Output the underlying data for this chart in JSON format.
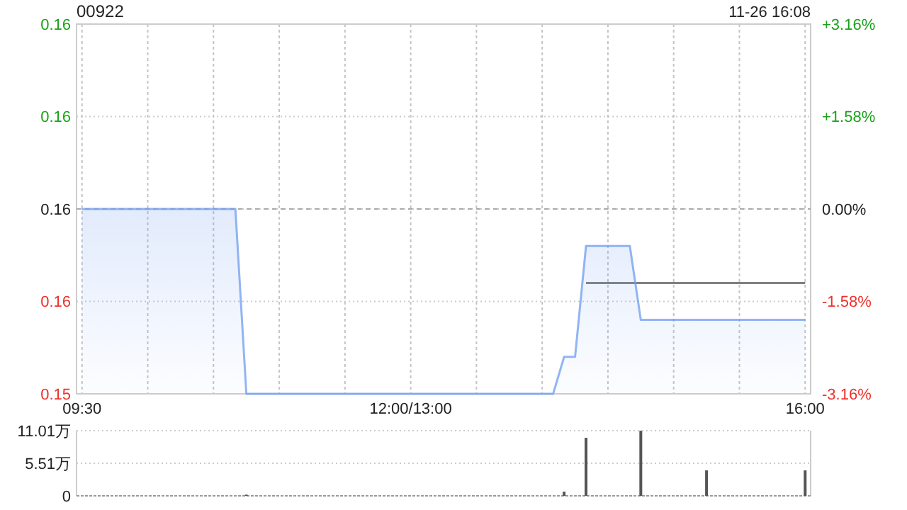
{
  "chart_data": [
    {
      "type": "line",
      "title": "00922",
      "subtitle": "11-26 16:08",
      "categories": [
        "09:30",
        null,
        null,
        null,
        null,
        null,
        null,
        null,
        null,
        null,
        null,
        null,
        null,
        null,
        null,
        null,
        null,
        null,
        null,
        null,
        null,
        null,
        null,
        null,
        null,
        null,
        null,
        null,
        null,
        null,
        "12:00/13:00",
        null,
        null,
        null,
        null,
        null,
        null,
        null,
        null,
        null,
        null,
        null,
        null,
        null,
        null,
        null,
        null,
        null,
        null,
        null,
        null,
        null,
        null,
        null,
        null,
        null,
        null,
        null,
        null,
        null,
        null,
        null,
        null,
        null,
        null,
        null,
        "16:00"
      ],
      "ylim": [
        0.153,
        0.163
      ],
      "yticks": [
        {
          "value": 0.153,
          "label": "0.15"
        },
        {
          "value": 0.1555,
          "label": "0.16"
        },
        {
          "value": 0.158,
          "label": "0.16"
        },
        {
          "value": 0.1605,
          "label": "0.16"
        },
        {
          "value": 0.163,
          "label": "0.16"
        }
      ],
      "y2lim": [
        -3.16,
        3.16
      ],
      "y2ticks": [
        {
          "value": -3.16,
          "label": "-3.16%"
        },
        {
          "value": -1.58,
          "label": "-1.58%"
        },
        {
          "value": 0,
          "label": "0.00%"
        },
        {
          "value": 1.58,
          "label": "+1.58%"
        },
        {
          "value": 3.16,
          "label": "+3.16%"
        }
      ],
      "grid": true,
      "ref_lines": [
        {
          "axis": "y2",
          "value": 0,
          "color": "#aaaaaa",
          "line_style": "dashed"
        }
      ],
      "series": [
        {
          "type": "area",
          "color": "#6f9cf0",
          "values": [
            0.158,
            0.158,
            0.158,
            0.158,
            0.158,
            0.158,
            0.158,
            0.158,
            0.158,
            0.158,
            0.158,
            0.158,
            0.158,
            0.158,
            0.158,
            0.153,
            0.153,
            0.153,
            0.153,
            0.153,
            0.153,
            0.153,
            0.153,
            0.153,
            0.153,
            0.153,
            0.153,
            0.153,
            0.153,
            0.153,
            0.153,
            0.153,
            0.153,
            0.153,
            0.153,
            0.153,
            0.153,
            0.153,
            0.153,
            0.153,
            0.153,
            0.153,
            0.153,
            0.153,
            0.154,
            0.154,
            0.157,
            0.157,
            0.157,
            0.157,
            0.157,
            0.155,
            0.155,
            0.155,
            0.155,
            0.155,
            0.155,
            0.155,
            0.155,
            0.155,
            0.155,
            0.155,
            0.155,
            0.155,
            0.155,
            0.155,
            0.155
          ]
        },
        {
          "color": "#808080",
          "values": [
            null,
            null,
            null,
            null,
            null,
            null,
            null,
            null,
            null,
            null,
            null,
            null,
            null,
            null,
            null,
            null,
            null,
            null,
            null,
            null,
            null,
            null,
            null,
            null,
            null,
            null,
            null,
            null,
            null,
            null,
            null,
            null,
            null,
            null,
            null,
            null,
            null,
            null,
            null,
            null,
            null,
            null,
            null,
            null,
            null,
            null,
            0.156,
            0.156,
            0.156,
            0.156,
            0.156,
            0.156,
            0.156,
            0.156,
            0.156,
            0.156,
            0.156,
            0.156,
            0.156,
            0.156,
            0.156,
            0.156,
            0.156,
            0.156,
            0.156,
            0.156,
            0.156
          ]
        }
      ]
    },
    {
      "type": "bar",
      "categories": [
        null,
        null,
        null,
        null,
        null,
        null,
        null,
        null,
        null,
        null,
        null,
        null,
        null,
        null,
        null,
        null,
        null,
        null,
        null,
        null,
        null,
        null,
        null,
        null,
        null,
        null,
        null,
        null,
        null,
        null,
        null,
        null,
        null,
        null,
        null,
        null,
        null,
        null,
        null,
        null,
        null,
        null,
        null,
        null,
        null,
        null,
        null,
        null,
        null,
        null,
        null,
        null,
        null,
        null,
        null,
        null,
        null,
        null,
        null,
        null,
        null,
        null,
        null,
        null,
        null,
        null,
        null
      ],
      "values": [
        null,
        null,
        null,
        null,
        null,
        null,
        null,
        null,
        null,
        null,
        null,
        null,
        null,
        null,
        null,
        0.2,
        null,
        null,
        null,
        null,
        null,
        null,
        null,
        null,
        null,
        null,
        null,
        null,
        null,
        null,
        null,
        null,
        null,
        null,
        null,
        null,
        null,
        null,
        null,
        null,
        null,
        null,
        null,
        null,
        0.7,
        null,
        9.8,
        null,
        null,
        null,
        null,
        11.0,
        null,
        null,
        null,
        null,
        null,
        4.3,
        null,
        null,
        null,
        null,
        null,
        null,
        null,
        null,
        4.3
      ],
      "color": "#555555",
      "ylim": [
        0,
        11.01
      ],
      "yticks": [
        0,
        {
          "value": 5.51,
          "label": "5.51万"
        },
        {
          "value": 11.01,
          "label": "11.01万"
        }
      ],
      "grid": "y"
    }
  ]
}
